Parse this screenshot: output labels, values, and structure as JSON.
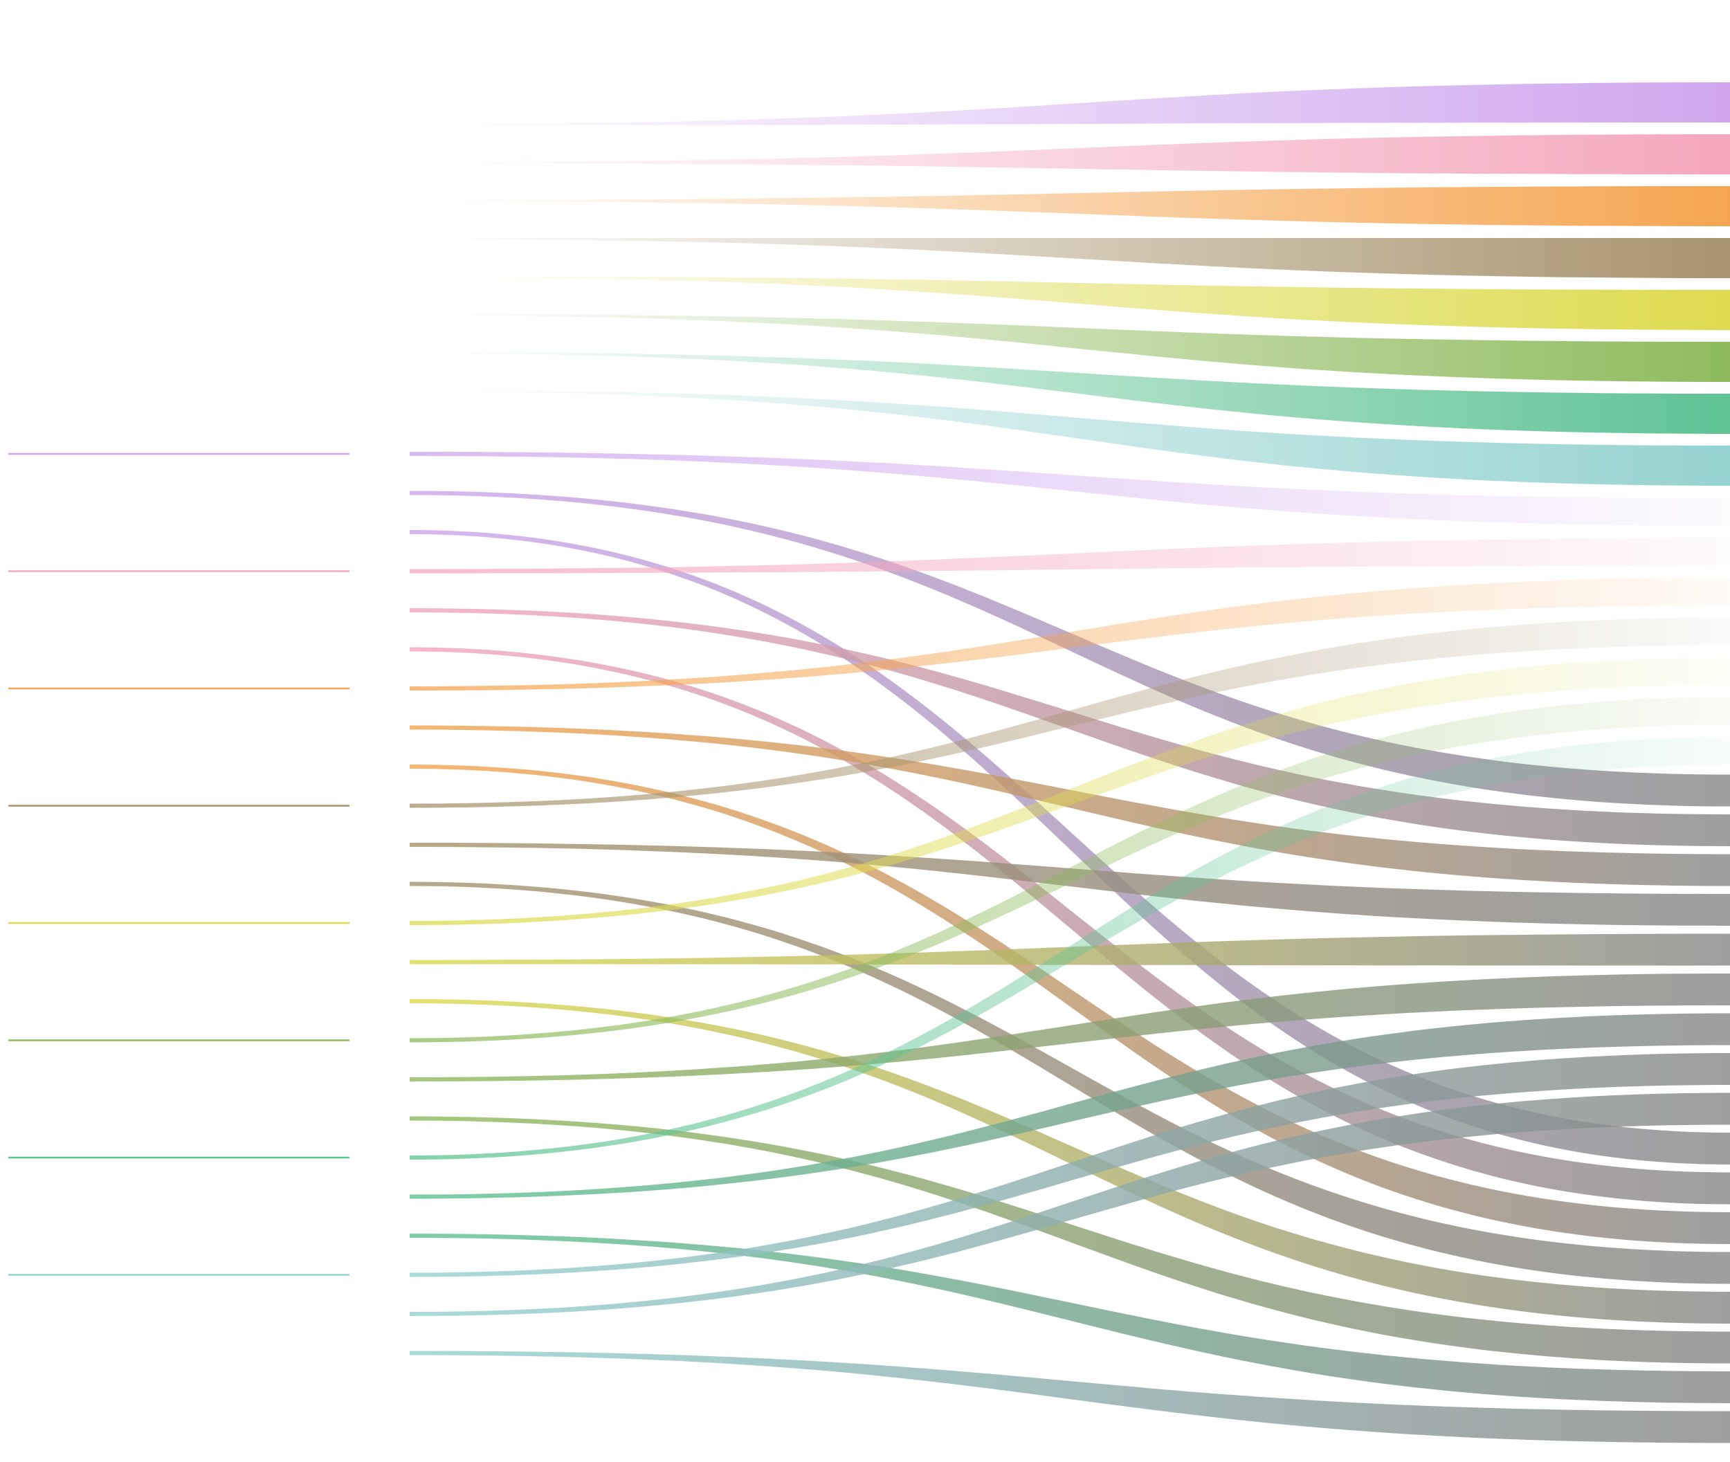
{
  "diagram": {
    "type": "ribbon-flow",
    "description_text": "",
    "colors": {
      "group_colors": [
        "#cfa6ee",
        "#f4a7bd",
        "#f5a550",
        "#a8946e",
        "#dddb4e",
        "#8fbb5e",
        "#5fc394",
        "#95d3d1"
      ],
      "grey": "#888888",
      "white": "#ffffff"
    },
    "groups": [
      {
        "id": "purple",
        "color_index": 0
      },
      {
        "id": "pink",
        "color_index": 1
      },
      {
        "id": "orange",
        "color_index": 2
      },
      {
        "id": "brown",
        "color_index": 3
      },
      {
        "id": "yellow",
        "color_index": 4
      },
      {
        "id": "green",
        "color_index": 5
      },
      {
        "id": "teal",
        "color_index": 6
      },
      {
        "id": "cyan",
        "color_index": 7
      }
    ],
    "top_fans": [
      {
        "group": 0,
        "weight": 5
      },
      {
        "group": 1,
        "weight": 5
      },
      {
        "group": 2,
        "weight": 5
      },
      {
        "group": 3,
        "weight": 5
      },
      {
        "group": 4,
        "weight": 5
      },
      {
        "group": 5,
        "weight": 5
      },
      {
        "group": 6,
        "weight": 5
      },
      {
        "group": 7,
        "weight": 5
      }
    ],
    "flows": [
      {
        "from_group": 0,
        "from_slot": 0,
        "to_slot": 0,
        "gradient": "fade-right",
        "weight": 2
      },
      {
        "from_group": 0,
        "from_slot": 1,
        "to_slot": 7,
        "gradient": "to-grey",
        "weight": 2
      },
      {
        "from_group": 0,
        "from_slot": 2,
        "to_slot": 16,
        "gradient": "to-grey",
        "weight": 2
      },
      {
        "from_group": 1,
        "from_slot": 0,
        "to_slot": 1,
        "gradient": "fade-right",
        "weight": 2
      },
      {
        "from_group": 1,
        "from_slot": 1,
        "to_slot": 8,
        "gradient": "to-grey",
        "weight": 2
      },
      {
        "from_group": 1,
        "from_slot": 2,
        "to_slot": 17,
        "gradient": "to-grey",
        "weight": 2
      },
      {
        "from_group": 2,
        "from_slot": 0,
        "to_slot": 2,
        "gradient": "fade-right",
        "weight": 2
      },
      {
        "from_group": 2,
        "from_slot": 1,
        "to_slot": 9,
        "gradient": "to-grey",
        "weight": 2
      },
      {
        "from_group": 2,
        "from_slot": 2,
        "to_slot": 18,
        "gradient": "to-grey",
        "weight": 2
      },
      {
        "from_group": 3,
        "from_slot": 0,
        "to_slot": 3,
        "gradient": "fade-right",
        "weight": 2
      },
      {
        "from_group": 3,
        "from_slot": 1,
        "to_slot": 10,
        "gradient": "to-grey",
        "weight": 2
      },
      {
        "from_group": 3,
        "from_slot": 2,
        "to_slot": 19,
        "gradient": "to-grey",
        "weight": 2
      },
      {
        "from_group": 4,
        "from_slot": 0,
        "to_slot": 4,
        "gradient": "fade-right",
        "weight": 2
      },
      {
        "from_group": 4,
        "from_slot": 1,
        "to_slot": 11,
        "gradient": "to-grey",
        "weight": 2
      },
      {
        "from_group": 4,
        "from_slot": 2,
        "to_slot": 20,
        "gradient": "to-grey",
        "weight": 2
      },
      {
        "from_group": 5,
        "from_slot": 0,
        "to_slot": 5,
        "gradient": "fade-right",
        "weight": 2
      },
      {
        "from_group": 5,
        "from_slot": 1,
        "to_slot": 12,
        "gradient": "to-grey",
        "weight": 2
      },
      {
        "from_group": 5,
        "from_slot": 2,
        "to_slot": 21,
        "gradient": "to-grey",
        "weight": 2
      },
      {
        "from_group": 6,
        "from_slot": 0,
        "to_slot": 6,
        "gradient": "fade-right",
        "weight": 2
      },
      {
        "from_group": 6,
        "from_slot": 1,
        "to_slot": 13,
        "gradient": "to-grey",
        "weight": 2
      },
      {
        "from_group": 6,
        "from_slot": 2,
        "to_slot": 22,
        "gradient": "to-grey",
        "weight": 2
      },
      {
        "from_group": 7,
        "from_slot": 0,
        "to_slot": 14,
        "gradient": "to-grey",
        "weight": 2
      },
      {
        "from_group": 7,
        "from_slot": 1,
        "to_slot": 15,
        "gradient": "to-grey",
        "weight": 2
      },
      {
        "from_group": 7,
        "from_slot": 2,
        "to_slot": 23,
        "gradient": "to-grey",
        "weight": 2
      }
    ]
  }
}
